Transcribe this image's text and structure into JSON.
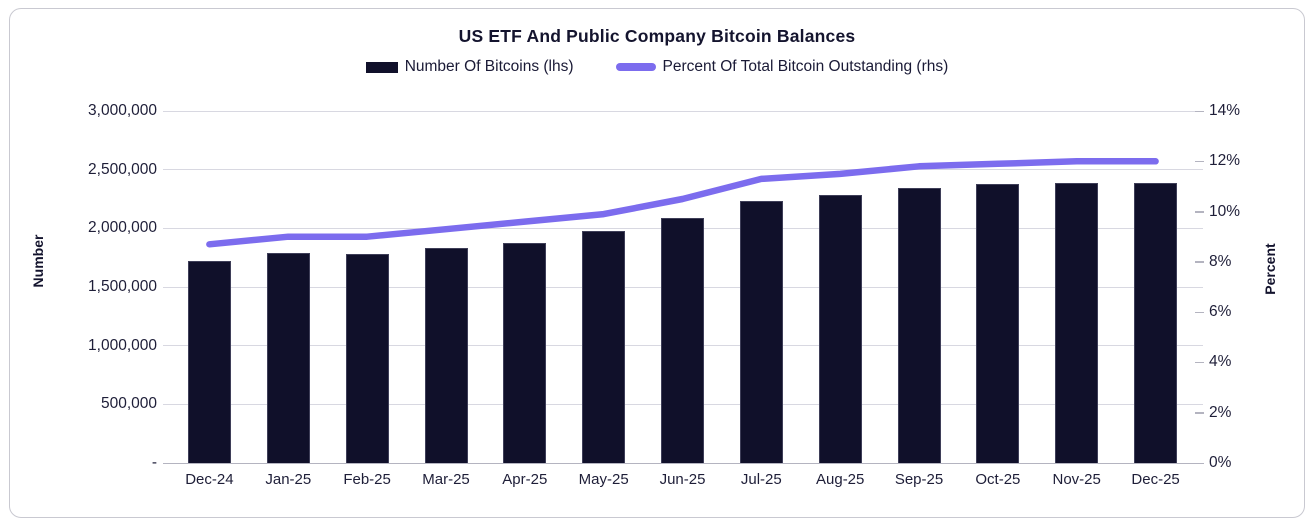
{
  "title": "US ETF And Public Company Bitcoin Balances",
  "legend": {
    "bars_label": "Number Of Bitcoins (lhs)",
    "line_label": "Percent Of Total Bitcoin Outstanding (rhs)"
  },
  "colors": {
    "bar": "#10102a",
    "line": "#7c6cee",
    "grid": "#d8d8e1",
    "axis_line": "#b4b4c0",
    "text": "#14142e"
  },
  "chart_data": {
    "type": "combo-bar-line",
    "title": "US ETF And Public Company Bitcoin Balances",
    "categories": [
      "Dec-24",
      "Jan-25",
      "Feb-25",
      "Mar-25",
      "Apr-25",
      "May-25",
      "Jun-25",
      "Jul-25",
      "Aug-25",
      "Sep-25",
      "Oct-25",
      "Nov-25",
      "Dec-25"
    ],
    "series": [
      {
        "name": "Number Of Bitcoins (lhs)",
        "type": "bar",
        "axis": "left",
        "color": "#10102a",
        "values": [
          1720000,
          1790000,
          1785000,
          1830000,
          1875000,
          1975000,
          2090000,
          2230000,
          2285000,
          2340000,
          2375000,
          2385000,
          2390000
        ]
      },
      {
        "name": "Percent Of Total Bitcoin Outstanding (rhs)",
        "type": "line",
        "axis": "right",
        "color": "#7c6cee",
        "values": [
          8.7,
          9.0,
          9.0,
          9.3,
          9.6,
          9.9,
          10.5,
          11.3,
          11.5,
          11.8,
          11.9,
          12.0,
          12.0
        ]
      }
    ],
    "left_axis": {
      "label": "Number",
      "min": 0,
      "max": 3000000,
      "step": 500000,
      "tick_labels": [
        "3,000,000",
        "2,500,000",
        "2,000,000",
        "1,500,000",
        "1,000,000",
        "500,000",
        "-"
      ]
    },
    "right_axis": {
      "label": "Percent",
      "min": 0,
      "max": 14,
      "step": 2,
      "tick_labels": [
        "14%",
        "12%",
        "10%",
        "8%",
        "6%",
        "4%",
        "2%",
        "0%"
      ]
    },
    "legend_position": "top",
    "grid": "horizontal"
  }
}
